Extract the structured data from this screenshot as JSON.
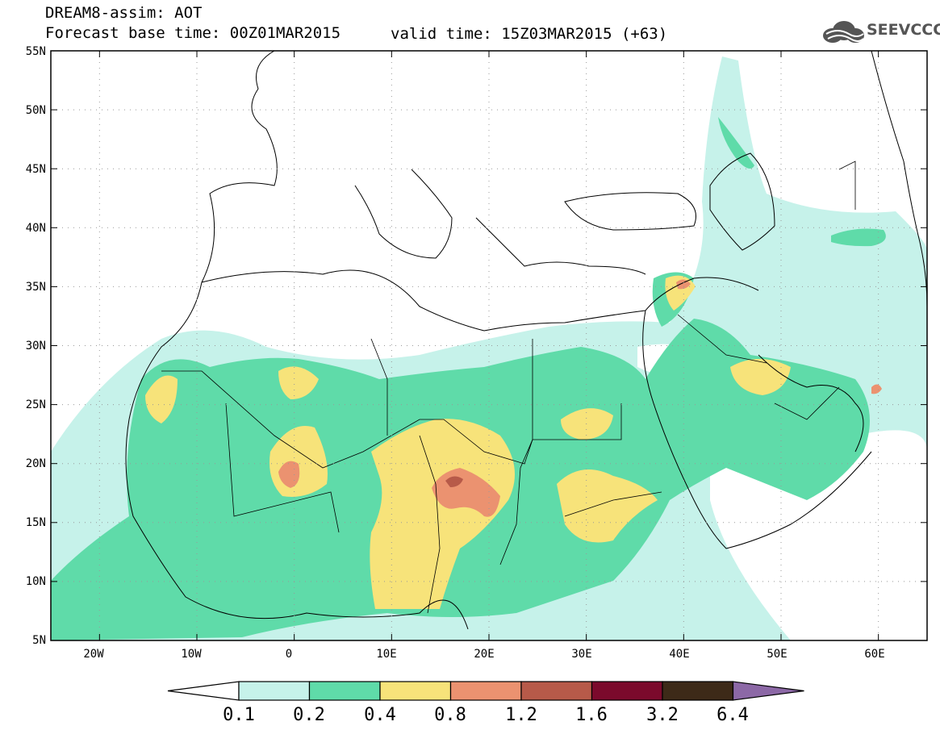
{
  "header": {
    "title_line1": "DREAM8-assim: AOT",
    "base_time": "Forecast base time: 00Z01MAR2015",
    "valid_time": "valid time: 15Z03MAR2015 (+63)",
    "logo_text": "SEEVCCC",
    "logo_icon": "cloud-icon"
  },
  "axes": {
    "lat_labels": [
      "55N",
      "50N",
      "45N",
      "40N",
      "35N",
      "30N",
      "25N",
      "20N",
      "15N",
      "10N",
      "5N"
    ],
    "lat_values": [
      55,
      50,
      45,
      40,
      35,
      30,
      25,
      20,
      15,
      10,
      5
    ],
    "lon_labels": [
      "20W",
      "10W",
      "0",
      "10E",
      "20E",
      "30E",
      "40E",
      "50E",
      "60E"
    ],
    "lon_values": [
      -20,
      -10,
      0,
      10,
      20,
      30,
      40,
      50,
      60
    ],
    "lon_range": [
      -25,
      65
    ],
    "lat_range": [
      5,
      55
    ],
    "grid": "dotted"
  },
  "colorbar": {
    "levels": [
      "0.1",
      "0.2",
      "0.4",
      "0.8",
      "1.2",
      "1.6",
      "3.2",
      "6.4"
    ],
    "colors": [
      "#ffffff",
      "#c6f2ea",
      "#5fdba9",
      "#f7e37a",
      "#eb9270",
      "#b75a49",
      "#7b0a2c",
      "#3d2a18",
      "#8c68a6"
    ]
  },
  "colors": {
    "c01": "#c6f2ea",
    "c02": "#5fdba9",
    "c04": "#f7e37a",
    "c08": "#eb9270",
    "c12": "#b75a49"
  }
}
